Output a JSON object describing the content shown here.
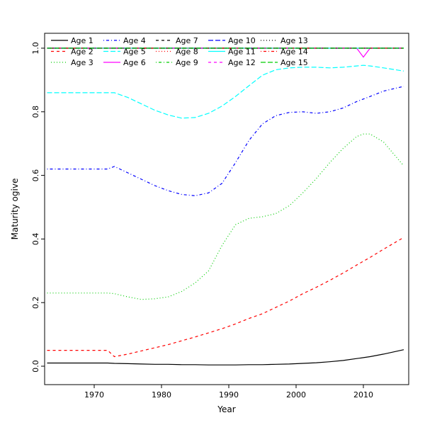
{
  "chart_data": {
    "type": "line",
    "title": "",
    "xlabel": "Year",
    "ylabel": "Maturity ogive",
    "xlim": [
      1963,
      2016
    ],
    "ylim": [
      0.0,
      1.0
    ],
    "grid": false,
    "legend_position": "top-left",
    "x_ticks": [
      1970,
      1980,
      1990,
      2000,
      2010
    ],
    "y_ticks": [
      "0.0",
      "0.2",
      "0.4",
      "0.6",
      "0.8",
      "1.0"
    ],
    "x": [
      1963,
      1966,
      1969,
      1972,
      1973,
      1975,
      1977,
      1979,
      1981,
      1983,
      1985,
      1987,
      1989,
      1991,
      1993,
      1995,
      1997,
      1999,
      2001,
      2003,
      2005,
      2007,
      2009,
      2010,
      2011,
      2013,
      2016
    ],
    "series": [
      {
        "name": "Age 1",
        "color": "#000000",
        "linetype": "solid",
        "values": [
          0.01,
          0.01,
          0.01,
          0.01,
          0.009,
          0.008,
          0.007,
          0.006,
          0.006,
          0.005,
          0.005,
          0.004,
          0.004,
          0.004,
          0.005,
          0.005,
          0.006,
          0.007,
          0.009,
          0.011,
          0.014,
          0.018,
          0.024,
          0.027,
          0.03,
          0.038,
          0.052
        ]
      },
      {
        "name": "Age 2",
        "color": "#FF0000",
        "linetype": "dashed",
        "values": [
          0.05,
          0.05,
          0.05,
          0.05,
          0.03,
          0.038,
          0.048,
          0.058,
          0.068,
          0.08,
          0.092,
          0.105,
          0.118,
          0.133,
          0.15,
          0.165,
          0.185,
          0.205,
          0.228,
          0.248,
          0.27,
          0.293,
          0.318,
          0.33,
          0.342,
          0.368,
          0.405
        ]
      },
      {
        "name": "Age 3",
        "color": "#00CD00",
        "linetype": "dotted",
        "values": [
          0.23,
          0.23,
          0.23,
          0.23,
          0.228,
          0.218,
          0.21,
          0.212,
          0.218,
          0.235,
          0.262,
          0.3,
          0.38,
          0.445,
          0.465,
          0.47,
          0.48,
          0.505,
          0.545,
          0.59,
          0.64,
          0.685,
          0.722,
          0.73,
          0.73,
          0.705,
          0.63
        ]
      },
      {
        "name": "Age 4",
        "color": "#0000FF",
        "linetype": "dotdash",
        "values": [
          0.62,
          0.62,
          0.62,
          0.62,
          0.628,
          0.608,
          0.588,
          0.568,
          0.552,
          0.54,
          0.536,
          0.545,
          0.575,
          0.64,
          0.71,
          0.762,
          0.788,
          0.798,
          0.8,
          0.795,
          0.8,
          0.812,
          0.832,
          0.84,
          0.848,
          0.865,
          0.88
        ]
      },
      {
        "name": "Age 5",
        "color": "#00FFFF",
        "linetype": "longdash",
        "values": [
          0.86,
          0.86,
          0.86,
          0.86,
          0.86,
          0.845,
          0.825,
          0.805,
          0.79,
          0.78,
          0.782,
          0.795,
          0.818,
          0.848,
          0.882,
          0.915,
          0.932,
          0.938,
          0.94,
          0.94,
          0.938,
          0.94,
          0.944,
          0.946,
          0.944,
          0.938,
          0.928
        ]
      },
      {
        "name": "Age 6",
        "color": "#FF00FF",
        "linetype": "solid",
        "values": [
          1,
          1,
          1,
          1,
          1,
          1,
          1,
          1,
          1,
          1,
          1,
          1,
          1,
          1,
          1,
          1,
          1,
          1,
          1,
          1,
          1,
          1,
          1,
          0.972,
          1,
          1,
          1
        ]
      },
      {
        "name": "Age 7",
        "color": "#000000",
        "linetype": "dashed",
        "values": [
          1,
          1,
          1,
          1,
          1,
          1,
          1,
          1,
          1,
          1,
          1,
          1,
          1,
          1,
          1,
          1,
          1,
          1,
          1,
          1,
          1,
          1,
          1,
          1,
          1,
          1,
          1
        ]
      },
      {
        "name": "Age 8",
        "color": "#FF0000",
        "linetype": "dotted",
        "values": [
          1,
          1,
          1,
          1,
          1,
          1,
          1,
          1,
          1,
          1,
          1,
          1,
          1,
          1,
          1,
          1,
          1,
          1,
          1,
          1,
          1,
          1,
          1,
          1,
          1,
          1,
          1
        ]
      },
      {
        "name": "Age 9",
        "color": "#00CD00",
        "linetype": "dotdash",
        "values": [
          1,
          1,
          1,
          1,
          1,
          1,
          1,
          1,
          1,
          1,
          1,
          1,
          1,
          1,
          1,
          1,
          1,
          1,
          1,
          1,
          1,
          1,
          1,
          1,
          1,
          1,
          1
        ]
      },
      {
        "name": "Age 10",
        "color": "#0000FF",
        "linetype": "longdash",
        "values": [
          1,
          1,
          1,
          1,
          1,
          1,
          1,
          1,
          1,
          1,
          1,
          1,
          1,
          1,
          1,
          1,
          1,
          1,
          1,
          1,
          1,
          1,
          1,
          1,
          1,
          1,
          1
        ]
      },
      {
        "name": "Age 11",
        "color": "#00FFFF",
        "linetype": "solid",
        "values": [
          1,
          1,
          1,
          1,
          1,
          1,
          1,
          1,
          1,
          1,
          1,
          1,
          1,
          1,
          1,
          1,
          1,
          1,
          1,
          1,
          1,
          1,
          1,
          1,
          1,
          1,
          1
        ]
      },
      {
        "name": "Age 12",
        "color": "#FF00FF",
        "linetype": "dashed",
        "values": [
          1,
          1,
          1,
          1,
          1,
          1,
          1,
          1,
          1,
          1,
          1,
          1,
          1,
          1,
          1,
          1,
          1,
          1,
          1,
          1,
          1,
          1,
          1,
          1,
          1,
          1,
          1
        ]
      },
      {
        "name": "Age 13",
        "color": "#000000",
        "linetype": "dotted",
        "values": [
          1,
          1,
          1,
          1,
          1,
          1,
          1,
          1,
          1,
          1,
          1,
          1,
          1,
          1,
          1,
          1,
          1,
          1,
          1,
          1,
          1,
          1,
          1,
          1,
          1,
          1,
          1
        ]
      },
      {
        "name": "Age 14",
        "color": "#FF0000",
        "linetype": "dotdash",
        "values": [
          1,
          1,
          1,
          1,
          1,
          1,
          1,
          1,
          1,
          1,
          1,
          1,
          1,
          1,
          1,
          1,
          1,
          1,
          1,
          1,
          1,
          1,
          1,
          1,
          1,
          1,
          1
        ]
      },
      {
        "name": "Age 15",
        "color": "#00CD00",
        "linetype": "longdash",
        "values": [
          1,
          1,
          1,
          1,
          1,
          1,
          1,
          1,
          1,
          1,
          1,
          1,
          1,
          1,
          1,
          1,
          1,
          1,
          1,
          1,
          1,
          1,
          1,
          1,
          1,
          1,
          1
        ]
      }
    ]
  }
}
